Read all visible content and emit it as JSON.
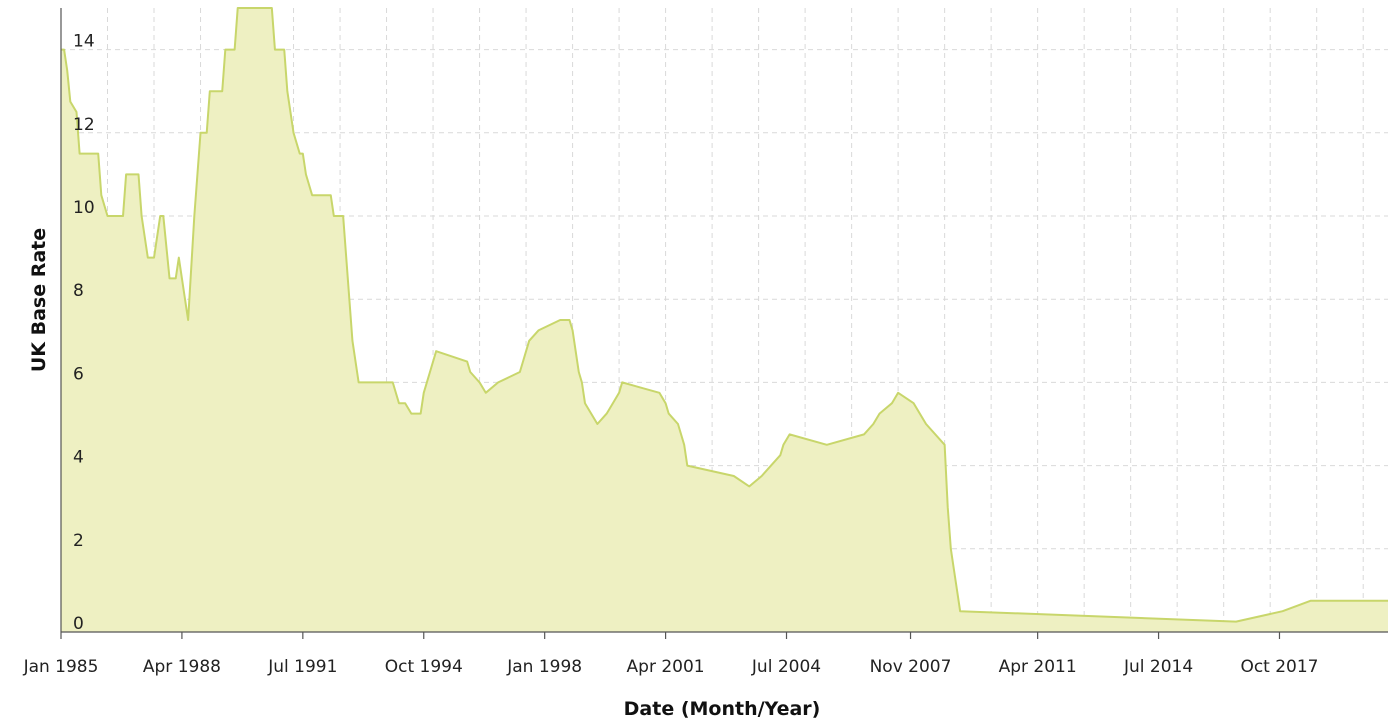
{
  "colors": {
    "area_fill": "#eef0c2",
    "line": "#c8d66b",
    "grid": "#d9d9d9",
    "axis": "#555555"
  },
  "chart_data": {
    "type": "area",
    "title": "",
    "xlabel": "Date (Month/Year)",
    "ylabel": "UK Base Rate",
    "xlim": [
      "1985-01",
      "2020-09"
    ],
    "ylim": [
      0,
      15
    ],
    "grid": true,
    "legend": "none",
    "x_ticks": [
      {
        "date": "1985-01",
        "label": "Jan 1985"
      },
      {
        "date": "1988-04",
        "label": "Apr 1988"
      },
      {
        "date": "1991-07",
        "label": "Jul 1991"
      },
      {
        "date": "1994-10",
        "label": "Oct 1994"
      },
      {
        "date": "1998-01",
        "label": "Jan 1998"
      },
      {
        "date": "2001-04",
        "label": "Apr 2001"
      },
      {
        "date": "2004-07",
        "label": "Jul 2004"
      },
      {
        "date": "2007-11",
        "label": "Nov 2007"
      },
      {
        "date": "2011-04",
        "label": "Apr 2011"
      },
      {
        "date": "2014-07",
        "label": "Jul 2014"
      },
      {
        "date": "2017-10",
        "label": "Oct 2017"
      }
    ],
    "y_ticks": [
      0,
      2,
      4,
      6,
      8,
      10,
      12,
      14
    ],
    "series": [
      {
        "points": [
          [
            "1985-01",
            14
          ],
          [
            "1985-02",
            14
          ],
          [
            "1985-03",
            13.5
          ],
          [
            "1985-04",
            12.75
          ],
          [
            "1985-06",
            12.5
          ],
          [
            "1985-07",
            11.5
          ],
          [
            "1986-01",
            11.5
          ],
          [
            "1986-02",
            10.5
          ],
          [
            "1986-04",
            10
          ],
          [
            "1986-09",
            10
          ],
          [
            "1986-10",
            11
          ],
          [
            "1987-02",
            11
          ],
          [
            "1987-03",
            10
          ],
          [
            "1987-05",
            9
          ],
          [
            "1987-07",
            9
          ],
          [
            "1987-09",
            10
          ],
          [
            "1987-10",
            10
          ],
          [
            "1987-12",
            8.5
          ],
          [
            "1988-02",
            8.5
          ],
          [
            "1988-03",
            9
          ],
          [
            "1988-06",
            7.5
          ],
          [
            "1988-08",
            10
          ],
          [
            "1988-10",
            12
          ],
          [
            "1988-12",
            12
          ],
          [
            "1989-01",
            13
          ],
          [
            "1989-05",
            13
          ],
          [
            "1989-06",
            14
          ],
          [
            "1989-09",
            14
          ],
          [
            "1989-10",
            15
          ],
          [
            "1990-09",
            15
          ],
          [
            "1990-10",
            14
          ],
          [
            "1991-01",
            14
          ],
          [
            "1991-02",
            13
          ],
          [
            "1991-04",
            12
          ],
          [
            "1991-06",
            11.5
          ],
          [
            "1991-07",
            11.5
          ],
          [
            "1991-08",
            11
          ],
          [
            "1991-10",
            10.5
          ],
          [
            "1992-04",
            10.5
          ],
          [
            "1992-05",
            10
          ],
          [
            "1992-08",
            10
          ],
          [
            "1992-10",
            8
          ],
          [
            "1992-11",
            7
          ],
          [
            "1993-01",
            6
          ],
          [
            "1993-12",
            6
          ],
          [
            "1994-02",
            5.5
          ],
          [
            "1994-04",
            5.5
          ],
          [
            "1994-06",
            5.25
          ],
          [
            "1994-09",
            5.25
          ],
          [
            "1994-10",
            5.75
          ],
          [
            "1994-12",
            6.25
          ],
          [
            "1995-02",
            6.75
          ],
          [
            "1995-12",
            6.5
          ],
          [
            "1996-01",
            6.25
          ],
          [
            "1996-04",
            6
          ],
          [
            "1996-06",
            5.75
          ],
          [
            "1996-10",
            6
          ],
          [
            "1997-05",
            6.25
          ],
          [
            "1997-06",
            6.5
          ],
          [
            "1997-07",
            6.75
          ],
          [
            "1997-08",
            7
          ],
          [
            "1997-11",
            7.25
          ],
          [
            "1998-06",
            7.5
          ],
          [
            "1998-09",
            7.5
          ],
          [
            "1998-10",
            7.25
          ],
          [
            "1998-11",
            6.75
          ],
          [
            "1998-12",
            6.25
          ],
          [
            "1999-01",
            6
          ],
          [
            "1999-02",
            5.5
          ],
          [
            "1999-04",
            5.25
          ],
          [
            "1999-06",
            5
          ],
          [
            "1999-09",
            5.25
          ],
          [
            "1999-11",
            5.5
          ],
          [
            "2000-01",
            5.75
          ],
          [
            "2000-02",
            6
          ],
          [
            "2001-02",
            5.75
          ],
          [
            "2001-04",
            5.5
          ],
          [
            "2001-05",
            5.25
          ],
          [
            "2001-08",
            5
          ],
          [
            "2001-09",
            4.75
          ],
          [
            "2001-10",
            4.5
          ],
          [
            "2001-11",
            4
          ],
          [
            "2003-02",
            3.75
          ],
          [
            "2003-07",
            3.5
          ],
          [
            "2003-11",
            3.75
          ],
          [
            "2004-02",
            4
          ],
          [
            "2004-05",
            4.25
          ],
          [
            "2004-06",
            4.5
          ],
          [
            "2004-08",
            4.75
          ],
          [
            "2005-08",
            4.5
          ],
          [
            "2006-08",
            4.75
          ],
          [
            "2006-11",
            5
          ],
          [
            "2007-01",
            5.25
          ],
          [
            "2007-05",
            5.5
          ],
          [
            "2007-07",
            5.75
          ],
          [
            "2007-12",
            5.5
          ],
          [
            "2008-02",
            5.25
          ],
          [
            "2008-04",
            5
          ],
          [
            "2008-10",
            4.5
          ],
          [
            "2008-11",
            3
          ],
          [
            "2008-12",
            2
          ],
          [
            "2009-01",
            1.5
          ],
          [
            "2009-02",
            1
          ],
          [
            "2009-03",
            0.5
          ],
          [
            "2016-08",
            0.25
          ],
          [
            "2017-11",
            0.5
          ],
          [
            "2018-08",
            0.75
          ],
          [
            "2020-09",
            0.75
          ]
        ]
      }
    ]
  }
}
